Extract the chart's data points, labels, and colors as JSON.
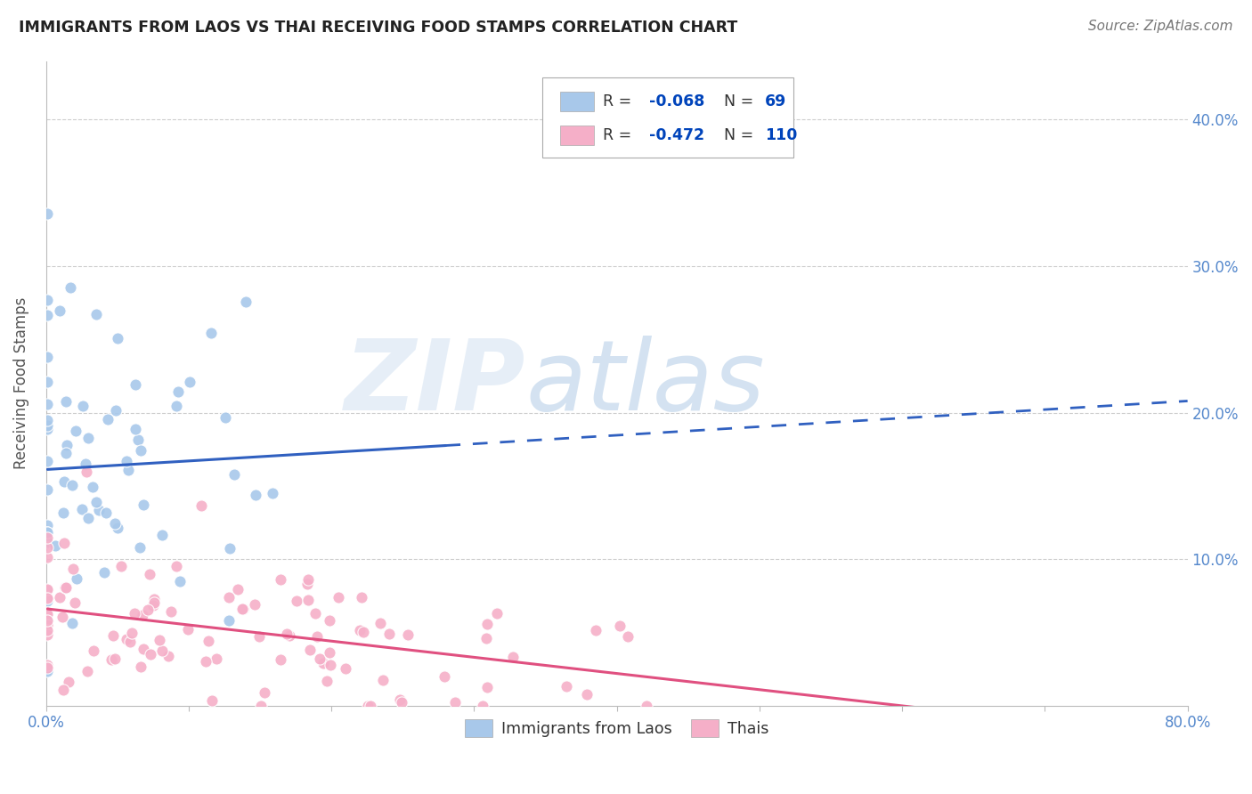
{
  "title": "IMMIGRANTS FROM LAOS VS THAI RECEIVING FOOD STAMPS CORRELATION CHART",
  "source": "Source: ZipAtlas.com",
  "ylabel": "Receiving Food Stamps",
  "xlim": [
    0.0,
    0.8
  ],
  "ylim": [
    0.0,
    0.44
  ],
  "yticks_right": [
    0.1,
    0.2,
    0.3,
    0.4
  ],
  "ytick_labels_right": [
    "10.0%",
    "20.0%",
    "30.0%",
    "40.0%"
  ],
  "grid_color": "#c8c8c8",
  "background_color": "#ffffff",
  "laos_color": "#a8c8ea",
  "thai_color": "#f5afc8",
  "laos_line_color": "#3060c0",
  "thai_line_color": "#e05080",
  "laos_R": -0.068,
  "laos_N": 69,
  "thai_R": -0.472,
  "thai_N": 110,
  "tick_color": "#5588cc",
  "text_color_dark": "#222222",
  "legend_text_color": "#333333",
  "legend_R_color": "#0044cc",
  "legend_N_color": "#0044cc"
}
